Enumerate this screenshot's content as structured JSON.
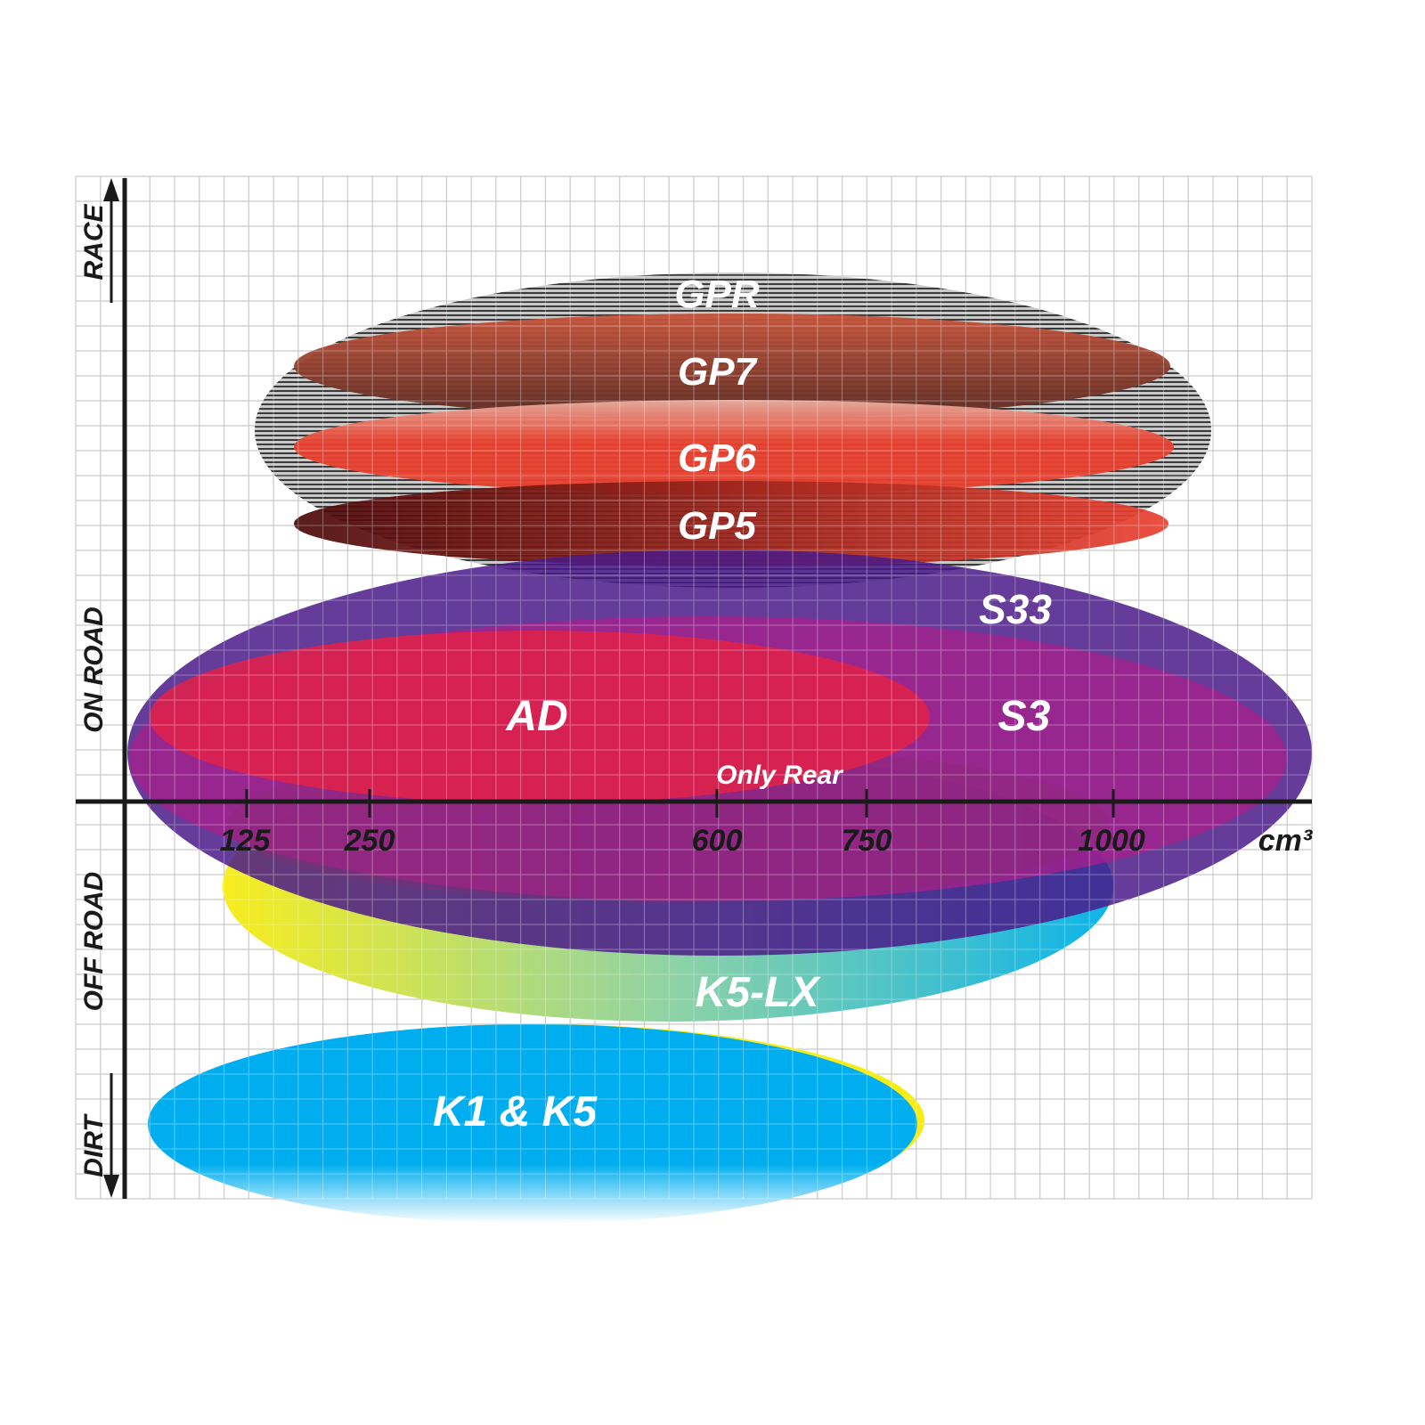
{
  "axis": {
    "x_ticks": [
      "125",
      "250",
      "600",
      "750",
      "1000"
    ],
    "x_unit": "cm³",
    "y_labels": [
      "RACE",
      "ON ROAD",
      "OFF ROAD",
      "DIRT"
    ]
  },
  "products": [
    {
      "id": "gpr",
      "label": "GPR",
      "colors": [
        "#bdbdbd",
        "#444444"
      ]
    },
    {
      "id": "gp7",
      "label": "GP7",
      "colors": [
        "#c9553c",
        "#5a2a22"
      ]
    },
    {
      "id": "gp6",
      "label": "GP6",
      "colors": [
        "#eab0a0",
        "#e8402e"
      ]
    },
    {
      "id": "gp5",
      "label": "GP5",
      "colors": [
        "#4a0808",
        "#ea4030"
      ]
    },
    {
      "id": "s33",
      "label": "S33",
      "colors": [
        "#5b2b92"
      ]
    },
    {
      "id": "s3",
      "label": "S3",
      "colors": [
        "#a4208c"
      ]
    },
    {
      "id": "ad",
      "label": "AD",
      "colors": [
        "#e0214a"
      ]
    },
    {
      "id": "only-rear",
      "label": "Only Rear",
      "colors": [
        "#8a2a80"
      ]
    },
    {
      "id": "k5lx",
      "label": "K5-LX",
      "colors": [
        "#f7ec13",
        "#00b0e8"
      ]
    },
    {
      "id": "k1k5",
      "label": "K1 & K5",
      "colors": [
        "#00aeef",
        "#f7ec13"
      ]
    }
  ]
}
